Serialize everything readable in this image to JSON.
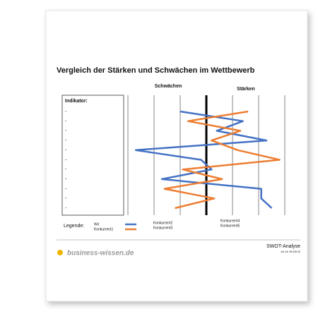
{
  "title": "Vergleich der Stärken und Schwächen im Wettbewerb",
  "columns": {
    "left": "Schwächen",
    "right": "Stärken"
  },
  "indicator": {
    "label": "Indikator:",
    "rows": [
      "-",
      "-",
      "-",
      "-",
      "-",
      "-",
      "-",
      "-",
      "-",
      "-",
      "-"
    ]
  },
  "chart_data": {
    "type": "line",
    "xlim": [
      -3,
      3
    ],
    "xticks": [
      -3,
      -2,
      -1,
      0,
      1,
      2,
      3
    ],
    "series": [
      {
        "name": "Wir",
        "color": "#4472c4",
        "values": [
          -1,
          1.4,
          0.4,
          2.3,
          -2.7,
          -0.2,
          0.2,
          -1.7,
          2.1,
          2.1,
          2.5
        ]
      },
      {
        "name": "Konkurrent1",
        "color": "#ed7d31",
        "values": [
          1.6,
          -0.7,
          1.3,
          0.2,
          1.2,
          2.8,
          -0.9,
          0.6,
          -1.6,
          0.3,
          -1.2
        ]
      }
    ]
  },
  "legend": {
    "label": "Legende:",
    "extra": [
      "Konkurrent2",
      "Konkurrent3",
      "Konkurrent4",
      "Konkurrent5"
    ]
  },
  "footer": {
    "brand": "business-wissen.de",
    "doc": "SWOT-Analyse",
    "art": "Art.-Nr. 98 030.00"
  }
}
